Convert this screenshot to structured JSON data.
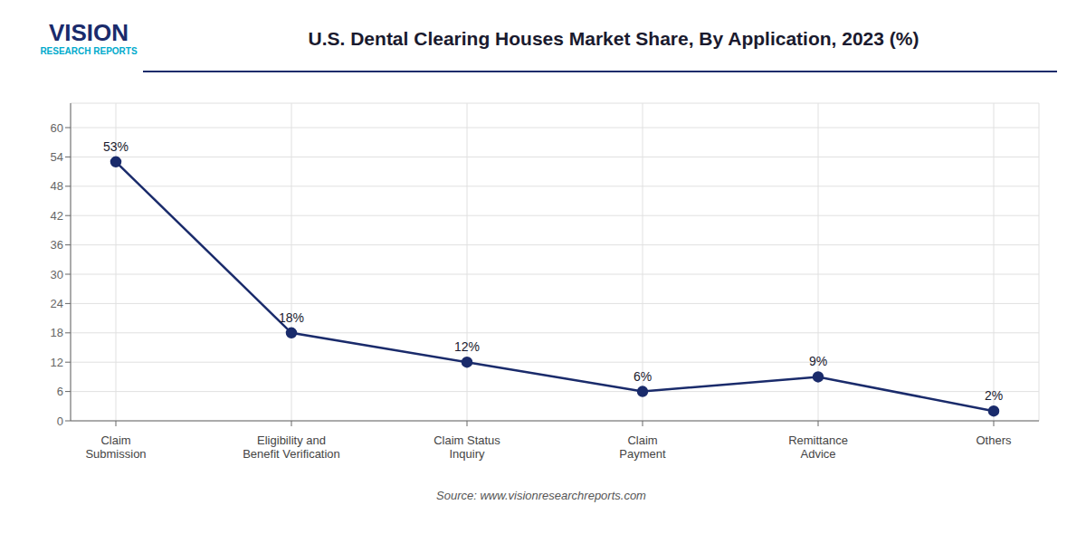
{
  "chart_data": {
    "type": "line",
    "title": "U.S. Dental Clearing Houses Market Share, By Application, 2023 (%)",
    "categories": [
      "Claim\nSubmission",
      "Eligibility and\nBenefit Verification",
      "Claim Status\nInquiry",
      "Claim\nPayment",
      "Remittance\nAdvice",
      "Others"
    ],
    "values": [
      53,
      18,
      12,
      6,
      9,
      2
    ],
    "value_labels": [
      "53%",
      "18%",
      "12%",
      "6%",
      "9%",
      "2%"
    ],
    "data_labels": true,
    "color": "#1a2b6b",
    "marker": "circle",
    "ylim": [
      0,
      65
    ],
    "yticks": [
      0,
      6,
      12,
      18,
      24,
      30,
      36,
      42,
      48,
      54,
      60
    ],
    "grid": true,
    "annotations": [
      "VISION",
      "RESEARCH REPORTS",
      "Source: www.visionresearchreports.com"
    ]
  }
}
